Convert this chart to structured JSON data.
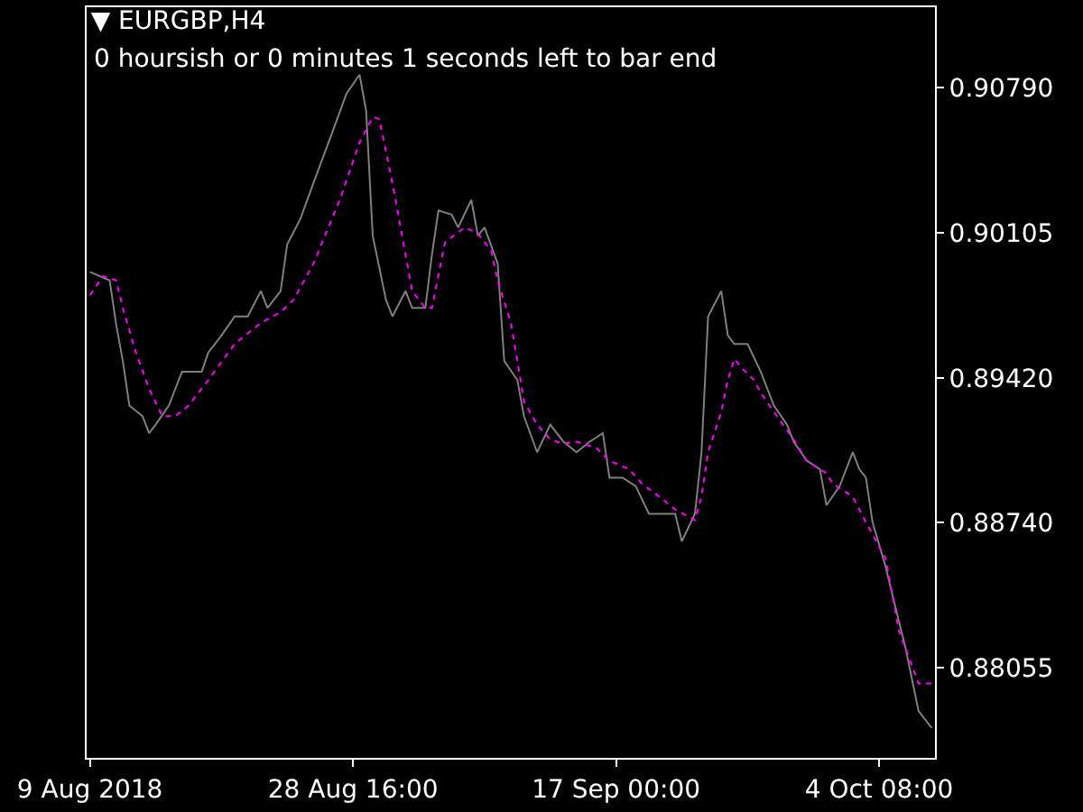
{
  "chart_data": {
    "type": "line",
    "title": "▼ EURGBP,H4",
    "annotations": [
      "0 hoursish or 0 minutes 1 seconds left to bar end"
    ],
    "categories": [
      "9 Aug 2018",
      null,
      null,
      null,
      null,
      null,
      null,
      null,
      null,
      null,
      null,
      null,
      null,
      null,
      null,
      null,
      null,
      null,
      null,
      null,
      null,
      null,
      null,
      null,
      null,
      null,
      null,
      null,
      null,
      null,
      null,
      null,
      null,
      null,
      null,
      null,
      null,
      null,
      null,
      null,
      "28 Aug 16:00",
      null,
      null,
      null,
      null,
      null,
      null,
      null,
      null,
      null,
      null,
      null,
      null,
      null,
      null,
      null,
      null,
      null,
      null,
      null,
      null,
      null,
      null,
      null,
      null,
      null,
      null,
      null,
      null,
      null,
      null,
      null,
      null,
      null,
      null,
      null,
      null,
      null,
      null,
      null,
      "17 Sep 00:00",
      null,
      null,
      null,
      null,
      null,
      null,
      null,
      null,
      null,
      null,
      null,
      null,
      null,
      null,
      null,
      null,
      null,
      null,
      null,
      null,
      null,
      null,
      null,
      null,
      null,
      null,
      null,
      null,
      null,
      null,
      null,
      null,
      null,
      null,
      null,
      null,
      null,
      null,
      null,
      "4 Oct 08:00",
      null,
      null,
      null,
      null,
      null,
      null,
      null,
      null
    ],
    "series": [
      {
        "color": "#7f7f7f",
        "line_style": "solid",
        "values": [
          0.8992,
          null,
          null,
          0.8988,
          0.8967,
          0.895,
          0.8929,
          null,
          0.8924,
          0.8916,
          0.892,
          null,
          0.8929,
          null,
          0.8945,
          null,
          null,
          0.8945,
          0.8954,
          null,
          0.8962,
          null,
          0.8971,
          null,
          0.8971,
          null,
          0.8983,
          0.8975,
          null,
          0.8983,
          0.9005,
          null,
          0.9017,
          null,
          0.9034,
          null,
          null,
          0.9059,
          null,
          0.9076,
          null,
          0.9085,
          0.9068,
          0.9009,
          null,
          0.8979,
          0.8971,
          null,
          0.8983,
          0.8975,
          null,
          0.8975,
          0.9,
          0.9021,
          null,
          0.9019,
          0.9013,
          null,
          0.9026,
          0.9009,
          0.9013,
          null,
          0.8996,
          0.895,
          null,
          0.8941,
          0.8924,
          null,
          0.8907,
          null,
          0.892,
          null,
          0.8912,
          null,
          0.8907,
          null,
          0.8912,
          null,
          0.8916,
          0.8895,
          null,
          0.8895,
          null,
          0.8891,
          null,
          0.8878,
          null,
          0.8878,
          null,
          0.8878,
          0.8865,
          null,
          0.8878,
          0.8907,
          0.8971,
          null,
          0.8983,
          0.8962,
          0.8958,
          null,
          0.8958,
          null,
          0.8945,
          null,
          0.8929,
          null,
          0.892,
          0.8912,
          null,
          0.8903,
          null,
          0.8899,
          0.8882,
          null,
          0.8891,
          null,
          0.8907,
          0.8899,
          0.8895,
          0.8874,
          null,
          0.8853,
          0.884,
          null,
          0.8815,
          null,
          0.8785,
          0.8781,
          0.8777
        ]
      },
      {
        "color": "#ff00ff",
        "line_style": "dotted",
        "values": [
          0.8981,
          null,
          0.899,
          null,
          0.8988,
          0.8975,
          null,
          0.8954,
          null,
          0.8937,
          null,
          0.8924,
          null,
          0.8924,
          null,
          0.8929,
          null,
          null,
          0.8941,
          null,
          null,
          null,
          0.8958,
          null,
          null,
          null,
          0.8968,
          null,
          null,
          0.8973,
          null,
          0.8979,
          null,
          null,
          0.8996,
          null,
          null,
          null,
          0.9026,
          null,
          null,
          0.9053,
          null,
          0.9065,
          0.9064,
          null,
          0.9034,
          null,
          0.9,
          0.8983,
          null,
          0.8975,
          0.8975,
          null,
          0.9006,
          null,
          null,
          0.9013,
          null,
          0.901,
          null,
          0.9002,
          0.8988,
          null,
          0.8968,
          0.895,
          0.8931,
          null,
          0.892,
          null,
          0.8913,
          null,
          0.8911,
          null,
          0.8912,
          null,
          null,
          0.8909,
          null,
          0.8903,
          null,
          null,
          0.8899,
          null,
          0.8892,
          null,
          null,
          0.8885,
          null,
          0.888,
          null,
          null,
          0.8875,
          0.8886,
          0.8907,
          null,
          0.8926,
          0.8941,
          0.8951,
          0.8947,
          null,
          0.8941,
          0.8935,
          null,
          0.8926,
          null,
          null,
          0.8913,
          null,
          0.8903,
          null,
          null,
          0.8897,
          0.8892,
          null,
          null,
          0.8886,
          null,
          0.8874,
          null,
          null,
          0.8857,
          null,
          0.8823,
          null,
          null,
          0.8798,
          null,
          0.8798
        ]
      }
    ],
    "ylim": [
      0.87629,
      0.91168
    ],
    "yticks": [
      {
        "value": 0.9079,
        "label": "0.90790"
      },
      {
        "value": 0.90105,
        "label": "0.90105"
      },
      {
        "value": 0.8942,
        "label": "0.89420"
      },
      {
        "value": 0.8874,
        "label": "0.88740"
      },
      {
        "value": 0.88055,
        "label": "0.88055"
      }
    ],
    "grid": false
  }
}
